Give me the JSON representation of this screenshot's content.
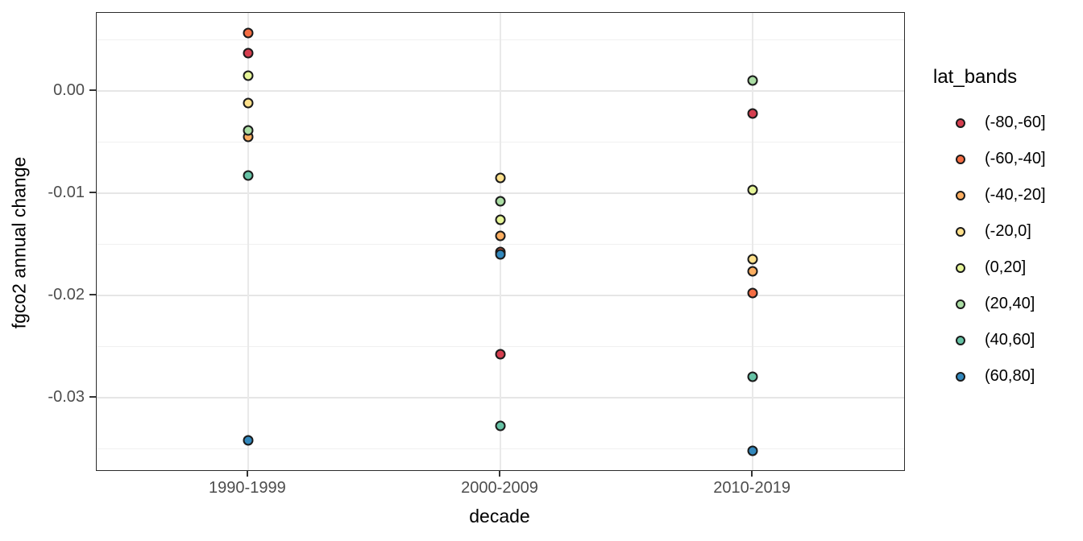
{
  "chart_data": {
    "type": "scatter",
    "title": "",
    "xlabel": "decade",
    "ylabel": "fgco2 annual change",
    "legend_title": "lat_bands",
    "legend_position": "right",
    "grid": true,
    "categories": [
      "1990-1999",
      "2000-2009",
      "2010-2019"
    ],
    "ylim": [
      -0.0371,
      0.0076
    ],
    "y_major_ticks": [
      {
        "label": "0.00",
        "value": 0.0
      },
      {
        "label": "-0.01",
        "value": -0.01
      },
      {
        "label": "-0.02",
        "value": -0.02
      },
      {
        "label": "-0.03",
        "value": -0.03
      }
    ],
    "y_minor_ticks": [
      0.005,
      -0.005,
      -0.015,
      -0.025,
      -0.035
    ],
    "series": [
      {
        "name": "(-80,-60]",
        "color": "#D53E4F",
        "values": [
          0.0037,
          -0.0258,
          -0.0022
        ]
      },
      {
        "name": "(-60,-40]",
        "color": "#F46D43",
        "values": [
          0.0056,
          -0.0158,
          -0.0198
        ]
      },
      {
        "name": "(-40,-20]",
        "color": "#FDAE61",
        "values": [
          -0.0045,
          -0.0142,
          -0.0177
        ]
      },
      {
        "name": "(-20,0]",
        "color": "#FEE08B",
        "values": [
          -0.0012,
          -0.0085,
          -0.0165
        ]
      },
      {
        "name": "(0,20]",
        "color": "#E6F598",
        "values": [
          0.0015,
          -0.0126,
          -0.0097
        ]
      },
      {
        "name": "(20,40]",
        "color": "#ABDDA4",
        "values": [
          -0.0039,
          -0.0108,
          0.001
        ]
      },
      {
        "name": "(40,60]",
        "color": "#66C2A5",
        "values": [
          -0.0083,
          -0.0328,
          -0.028
        ]
      },
      {
        "name": "(60,80]",
        "color": "#3288BD",
        "values": [
          -0.0342,
          -0.016,
          -0.0352
        ]
      }
    ],
    "style": {
      "point_stroke": "#1a1a1a",
      "panel_border": "#2b2b2b",
      "axis_text_color": "#4d4d4d",
      "gridline_major": "#e6e6e6",
      "gridline_minor": "#f0f0f0",
      "background": "#ffffff"
    }
  }
}
